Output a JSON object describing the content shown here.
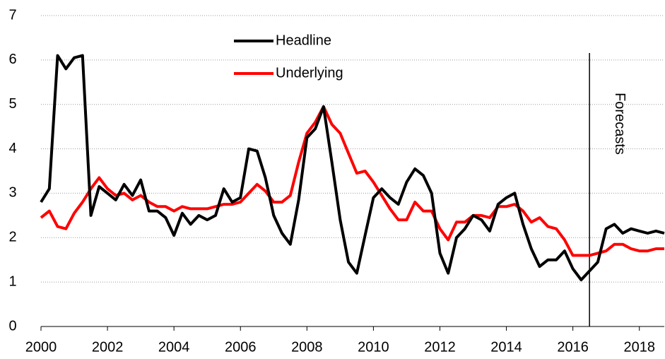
{
  "chart_data": {
    "type": "line",
    "x": [
      2000,
      2000.25,
      2000.5,
      2000.75,
      2001,
      2001.25,
      2001.5,
      2001.75,
      2002,
      2002.25,
      2002.5,
      2002.75,
      2003,
      2003.25,
      2003.5,
      2003.75,
      2004,
      2004.25,
      2004.5,
      2004.75,
      2005,
      2005.25,
      2005.5,
      2005.75,
      2006,
      2006.25,
      2006.5,
      2006.75,
      2007,
      2007.25,
      2007.5,
      2007.75,
      2008,
      2008.25,
      2008.5,
      2008.75,
      2009,
      2009.25,
      2009.5,
      2009.75,
      2010,
      2010.25,
      2010.5,
      2010.75,
      2011,
      2011.25,
      2011.5,
      2011.75,
      2012,
      2012.25,
      2012.5,
      2012.75,
      2013,
      2013.25,
      2013.5,
      2013.75,
      2014,
      2014.25,
      2014.5,
      2014.75,
      2015,
      2015.25,
      2015.5,
      2015.75,
      2016,
      2016.25,
      2016.5,
      2016.75,
      2017,
      2017.25,
      2017.5,
      2017.75,
      2018,
      2018.25,
      2018.5,
      2018.75
    ],
    "series": [
      {
        "name": "Headline",
        "color": "#000000",
        "values": [
          2.8,
          3.1,
          6.1,
          5.8,
          6.05,
          6.1,
          2.5,
          3.15,
          3.0,
          2.85,
          3.2,
          2.95,
          3.3,
          2.6,
          2.6,
          2.45,
          2.05,
          2.55,
          2.3,
          2.5,
          2.4,
          2.5,
          3.1,
          2.8,
          2.9,
          4.0,
          3.95,
          3.35,
          2.5,
          2.1,
          1.85,
          2.85,
          4.25,
          4.45,
          4.95,
          3.7,
          2.4,
          1.45,
          1.2,
          2.05,
          2.9,
          3.1,
          2.9,
          2.75,
          3.25,
          3.55,
          3.4,
          3.0,
          1.65,
          1.2,
          2.0,
          2.2,
          2.5,
          2.4,
          2.15,
          2.75,
          2.9,
          3.0,
          2.3,
          1.75,
          1.35,
          1.5,
          1.5,
          1.7,
          1.3,
          1.05,
          1.25,
          1.45,
          2.2,
          2.3,
          2.1,
          2.2,
          2.15,
          2.1,
          2.15,
          2.1
        ]
      },
      {
        "name": "Underlying",
        "color": "#ff0000",
        "values": [
          2.45,
          2.6,
          2.25,
          2.2,
          2.55,
          2.8,
          3.1,
          3.35,
          3.1,
          2.95,
          3.0,
          2.85,
          2.95,
          2.8,
          2.7,
          2.7,
          2.6,
          2.7,
          2.65,
          2.65,
          2.65,
          2.7,
          2.75,
          2.75,
          2.8,
          3.0,
          3.2,
          3.05,
          2.8,
          2.8,
          2.95,
          3.7,
          4.35,
          4.6,
          4.95,
          4.55,
          4.35,
          3.9,
          3.45,
          3.5,
          3.25,
          2.95,
          2.65,
          2.4,
          2.4,
          2.8,
          2.6,
          2.6,
          2.2,
          1.95,
          2.35,
          2.35,
          2.5,
          2.5,
          2.45,
          2.7,
          2.7,
          2.75,
          2.6,
          2.35,
          2.45,
          2.25,
          2.2,
          1.95,
          1.6,
          1.6,
          1.6,
          1.65,
          1.7,
          1.85,
          1.85,
          1.75,
          1.7,
          1.7,
          1.75,
          1.75
        ]
      }
    ],
    "xlim": [
      2000,
      2018.75
    ],
    "xticks": [
      2000,
      2002,
      2004,
      2006,
      2008,
      2010,
      2012,
      2014,
      2016,
      2018
    ],
    "ylim": [
      0,
      7
    ],
    "yticks": [
      0,
      1,
      2,
      3,
      4,
      5,
      6,
      7
    ],
    "grid": true,
    "annotations": [
      {
        "text": "Forecasts",
        "x": 2016.5
      }
    ]
  }
}
